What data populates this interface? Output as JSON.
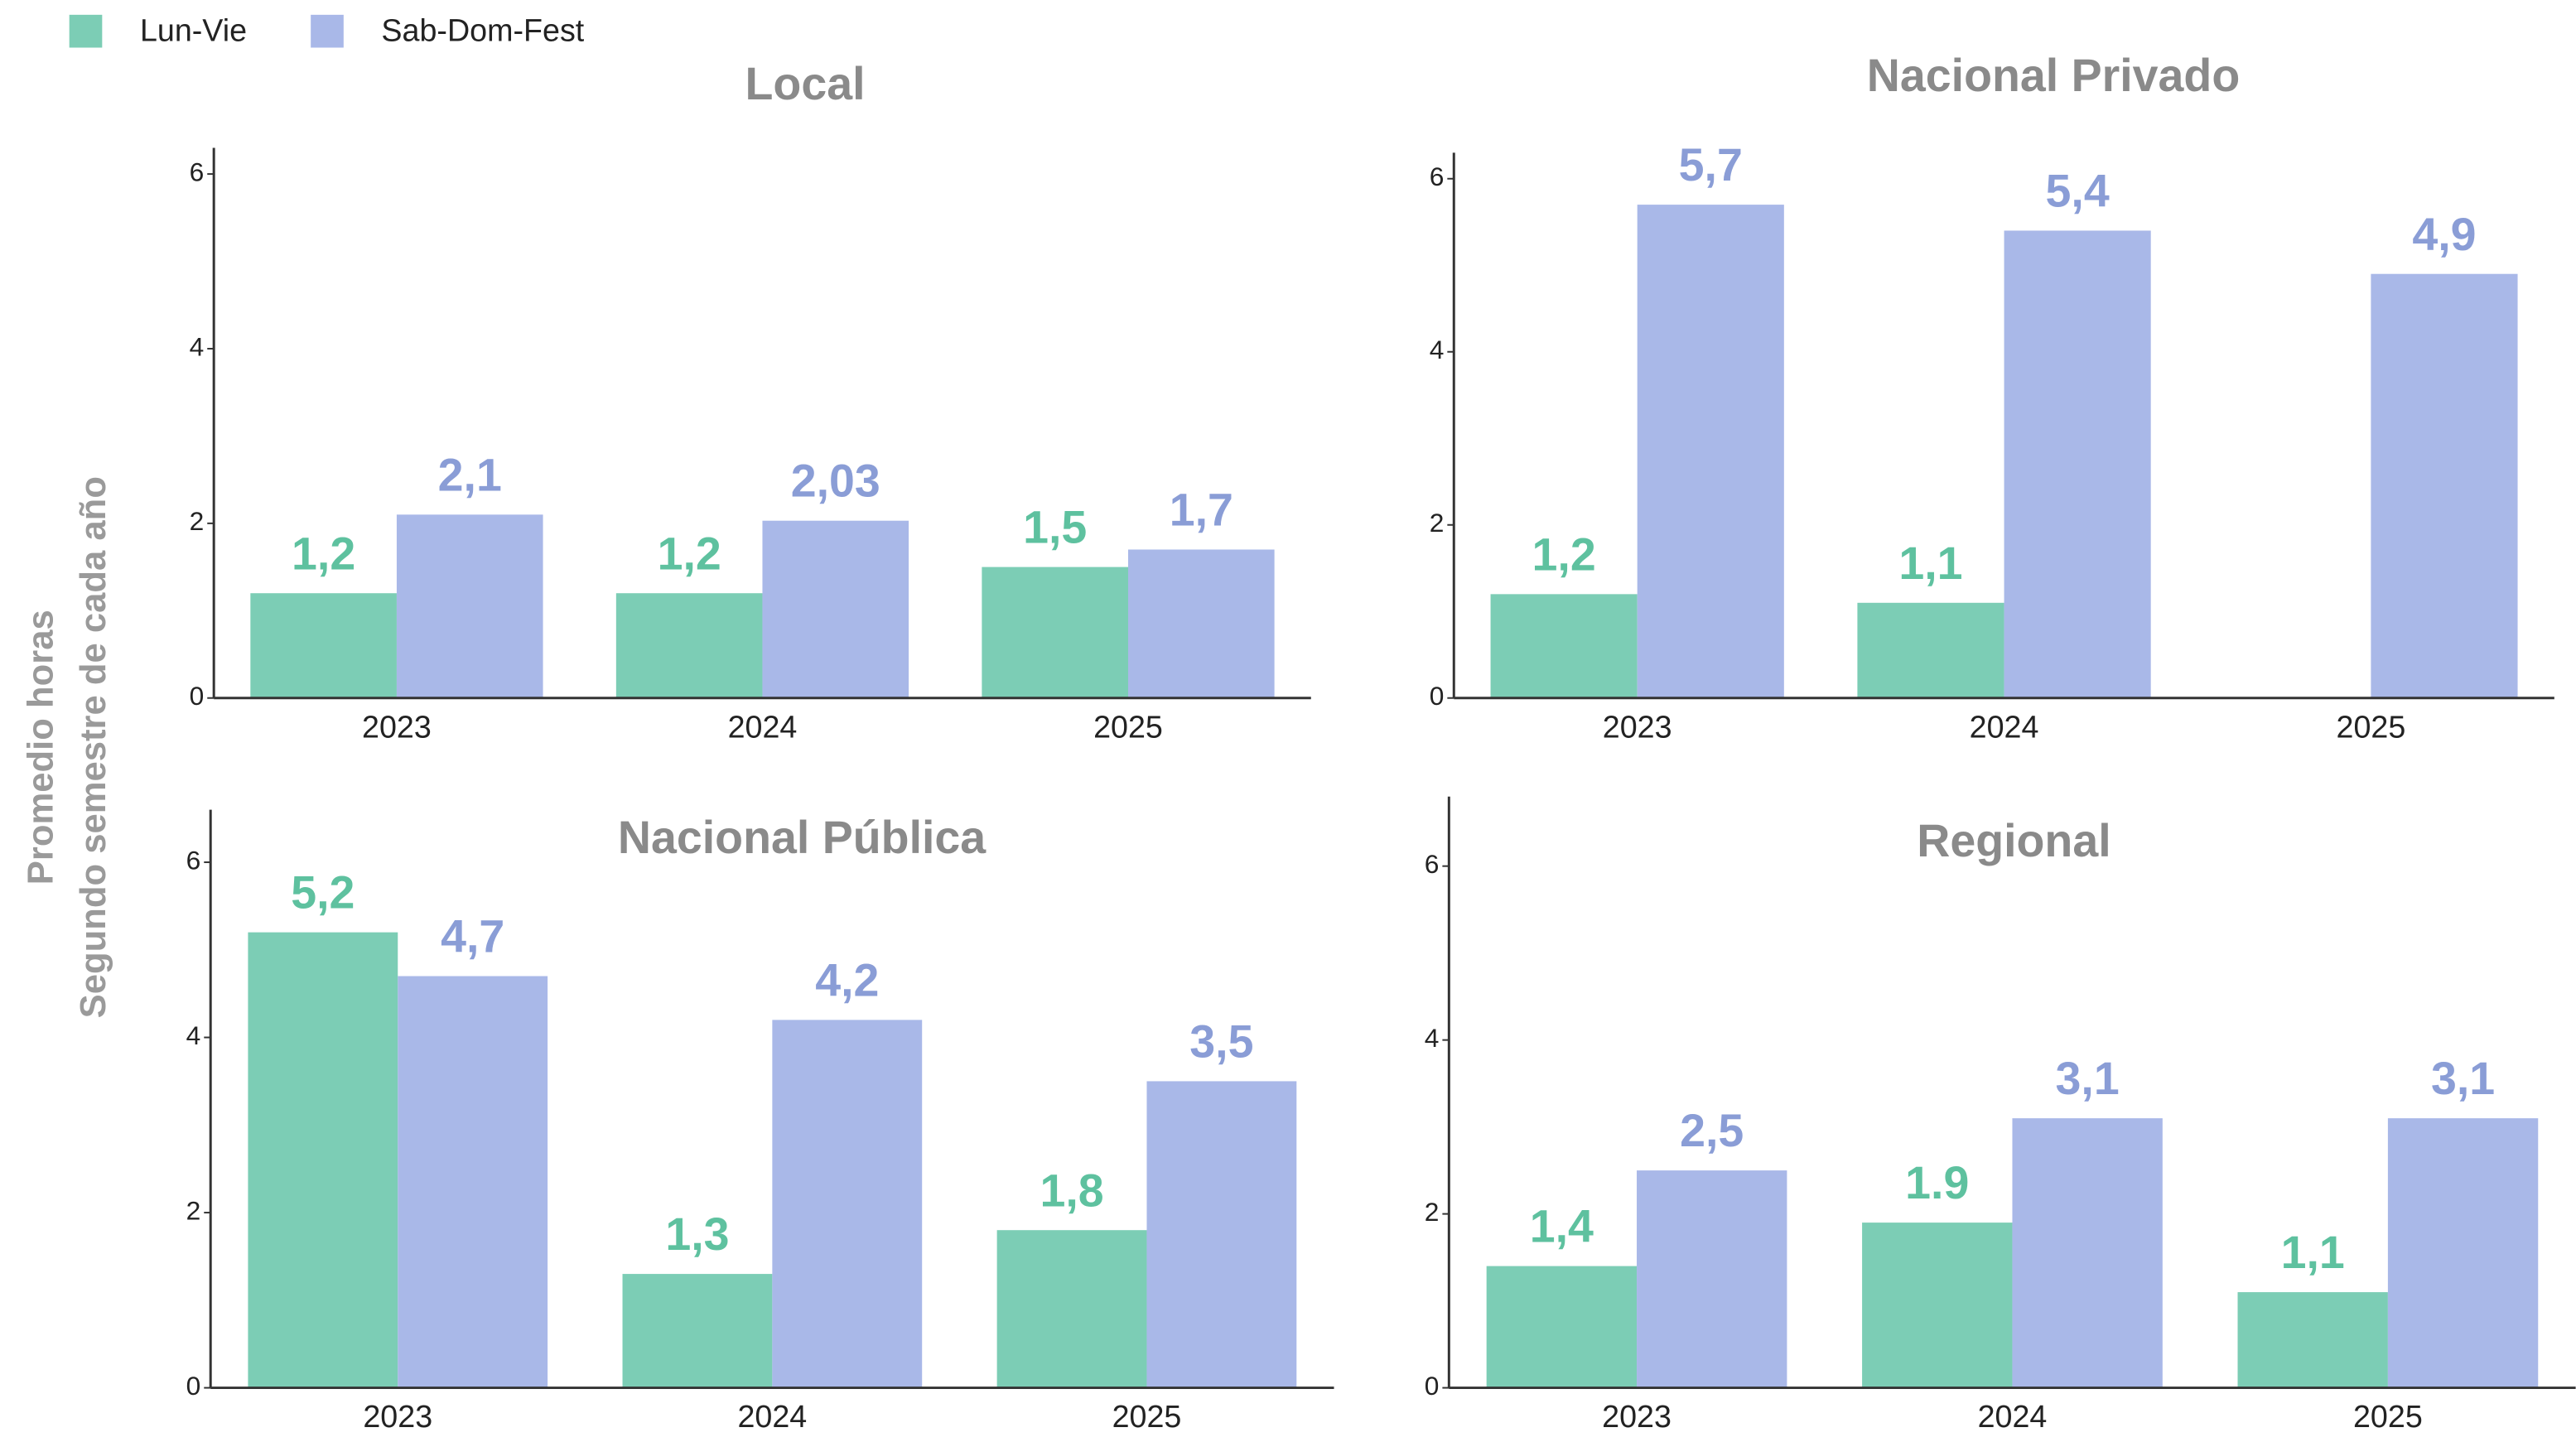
{
  "y_label_lines": [
    "Promedio horas",
    "Segundo semestre de cada año"
  ],
  "chart_data": [
    {
      "type": "bar",
      "title": "Local",
      "categories": [
        "2023",
        "2024",
        "2025"
      ],
      "series": [
        {
          "name": "Lun-Vie",
          "color": "#7ccdb5",
          "label_color": "#5ec19f",
          "values": [
            1.2,
            1.2,
            1.5
          ],
          "value_labels": [
            "1,2",
            "1,2",
            "1,5"
          ]
        },
        {
          "name": "Sab-Dom-Fest",
          "color": "#a9b8e8",
          "label_color": "#8a9dd6",
          "values": [
            2.1,
            2.03,
            1.7
          ],
          "value_labels": [
            "2,1",
            "2,03",
            "1,7"
          ]
        }
      ],
      "ylim": [
        0,
        6.3
      ],
      "yticks": [
        0,
        2,
        4,
        6
      ]
    },
    {
      "type": "bar",
      "title": "Nacional Privado",
      "categories": [
        "2023",
        "2024",
        "2025"
      ],
      "series": [
        {
          "name": "Lun-Vie",
          "color": "#7ccdb5",
          "label_color": "#5ec19f",
          "values": [
            1.2,
            1.1,
            null
          ],
          "value_labels": [
            "1,2",
            "1,1",
            null
          ]
        },
        {
          "name": "Sab-Dom-Fest",
          "color": "#a9b8e8",
          "label_color": "#8a9dd6",
          "values": [
            5.7,
            5.4,
            4.9
          ],
          "value_labels": [
            "5,7",
            "5,4",
            "4,9"
          ]
        }
      ],
      "ylim": [
        0,
        6.3
      ],
      "yticks": [
        0,
        2,
        4,
        6
      ]
    },
    {
      "type": "bar",
      "title": "Nacional Pública",
      "categories": [
        "2023",
        "2024",
        "2025"
      ],
      "series": [
        {
          "name": "Lun-Vie",
          "color": "#7ccdb5",
          "label_color": "#5ec19f",
          "values": [
            5.2,
            1.3,
            1.8
          ],
          "value_labels": [
            "5,2",
            "1,3",
            "1,8"
          ]
        },
        {
          "name": "Sab-Dom-Fest",
          "color": "#a9b8e8",
          "label_color": "#8a9dd6",
          "values": [
            4.7,
            4.2,
            3.5
          ],
          "value_labels": [
            "4,7",
            "4,2",
            "3,5"
          ]
        }
      ],
      "ylim": [
        0,
        6.6
      ],
      "yticks": [
        0,
        2,
        4,
        6
      ]
    },
    {
      "type": "bar",
      "title": "Regional",
      "categories": [
        "2023",
        "2024",
        "2025"
      ],
      "series": [
        {
          "name": "Lun-Vie",
          "color": "#7ccdb5",
          "label_color": "#5ec19f",
          "values": [
            1.4,
            1.9,
            1.1
          ],
          "value_labels": [
            "1,4",
            "1.9",
            "1,1"
          ]
        },
        {
          "name": "Sab-Dom-Fest",
          "color": "#a9b8e8",
          "label_color": "#8a9dd6",
          "values": [
            2.5,
            3.1,
            3.1
          ],
          "value_labels": [
            "2,5",
            "3,1",
            "3,1"
          ]
        }
      ],
      "ylim": [
        0,
        6.8
      ],
      "yticks": [
        0,
        2,
        4,
        6
      ]
    }
  ]
}
